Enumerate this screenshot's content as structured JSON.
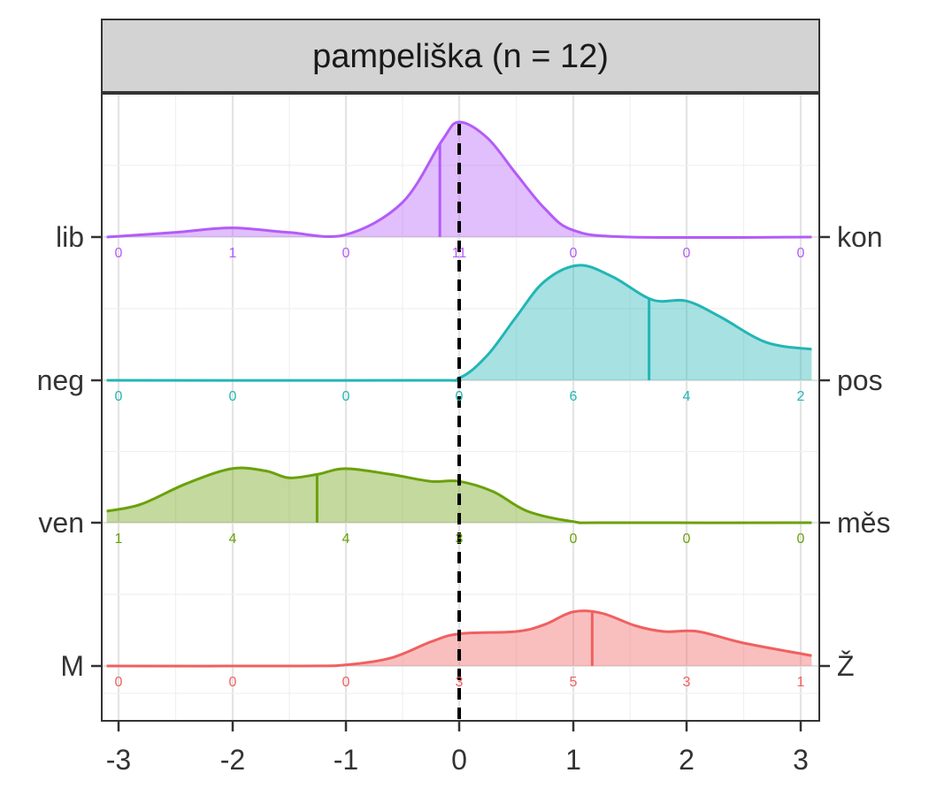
{
  "chart_data": {
    "type": "area",
    "panel_title": "pampeliška (n = 12)",
    "xlim": [
      -3.1,
      3.1
    ],
    "x_ticks": [
      -3,
      -2,
      -1,
      0,
      1,
      2,
      3
    ],
    "x_tick_labels": [
      "-3",
      "-2",
      "-1",
      "0",
      "1",
      "2",
      "3"
    ],
    "reference_line_x": 0,
    "grid": true,
    "series": [
      {
        "left_label": "lib",
        "right_label": "kon",
        "color": "#b35cf7",
        "mean": -0.17,
        "counts": [
          "0",
          "1",
          "0",
          "11",
          "0",
          "0",
          "0"
        ],
        "density": [
          [
            -3.1,
            0.0
          ],
          [
            -2.5,
            0.04
          ],
          [
            -2.0,
            0.08
          ],
          [
            -1.5,
            0.04
          ],
          [
            -1.0,
            0.02
          ],
          [
            -0.5,
            0.3
          ],
          [
            -0.15,
            0.84
          ],
          [
            0.0,
            1.0
          ],
          [
            0.25,
            0.86
          ],
          [
            0.5,
            0.55
          ],
          [
            0.75,
            0.25
          ],
          [
            1.0,
            0.06
          ],
          [
            1.5,
            0.0
          ],
          [
            3.1,
            0.0
          ]
        ]
      },
      {
        "left_label": "neg",
        "right_label": "pos",
        "color": "#23b5b5",
        "mean": 1.67,
        "counts": [
          "0",
          "0",
          "0",
          "0",
          "6",
          "4",
          "2"
        ],
        "density": [
          [
            -3.1,
            0.0
          ],
          [
            -0.3,
            0.0
          ],
          [
            0.0,
            0.02
          ],
          [
            0.25,
            0.22
          ],
          [
            0.5,
            0.55
          ],
          [
            0.75,
            0.86
          ],
          [
            1.05,
            1.0
          ],
          [
            1.35,
            0.9
          ],
          [
            1.7,
            0.7
          ],
          [
            2.0,
            0.69
          ],
          [
            2.3,
            0.55
          ],
          [
            2.7,
            0.33
          ],
          [
            3.1,
            0.27
          ]
        ]
      },
      {
        "left_label": "ven",
        "right_label": "měs",
        "color": "#6aa10a",
        "mean": -1.25,
        "counts": [
          "1",
          "4",
          "4",
          "3",
          "0",
          "0",
          "0"
        ],
        "density": [
          [
            -3.1,
            0.1
          ],
          [
            -2.8,
            0.16
          ],
          [
            -2.4,
            0.34
          ],
          [
            -2.0,
            0.47
          ],
          [
            -1.7,
            0.45
          ],
          [
            -1.5,
            0.39
          ],
          [
            -1.25,
            0.42
          ],
          [
            -1.0,
            0.47
          ],
          [
            -0.6,
            0.42
          ],
          [
            -0.25,
            0.36
          ],
          [
            0.0,
            0.36
          ],
          [
            0.3,
            0.27
          ],
          [
            0.6,
            0.1
          ],
          [
            1.0,
            0.01
          ],
          [
            1.3,
            0.0
          ],
          [
            3.1,
            0.0
          ]
        ]
      },
      {
        "left_label": "M",
        "right_label": "Ž",
        "color": "#f06060",
        "mean": 1.17,
        "counts": [
          "0",
          "0",
          "0",
          "3",
          "5",
          "3",
          "1"
        ],
        "density": [
          [
            -3.1,
            0.0
          ],
          [
            -1.4,
            0.0
          ],
          [
            -1.0,
            0.01
          ],
          [
            -0.6,
            0.07
          ],
          [
            -0.25,
            0.21
          ],
          [
            0.0,
            0.28
          ],
          [
            0.5,
            0.3
          ],
          [
            0.75,
            0.36
          ],
          [
            1.0,
            0.47
          ],
          [
            1.25,
            0.46
          ],
          [
            1.55,
            0.35
          ],
          [
            1.8,
            0.3
          ],
          [
            2.1,
            0.3
          ],
          [
            2.5,
            0.2
          ],
          [
            3.1,
            0.09
          ]
        ]
      }
    ]
  }
}
